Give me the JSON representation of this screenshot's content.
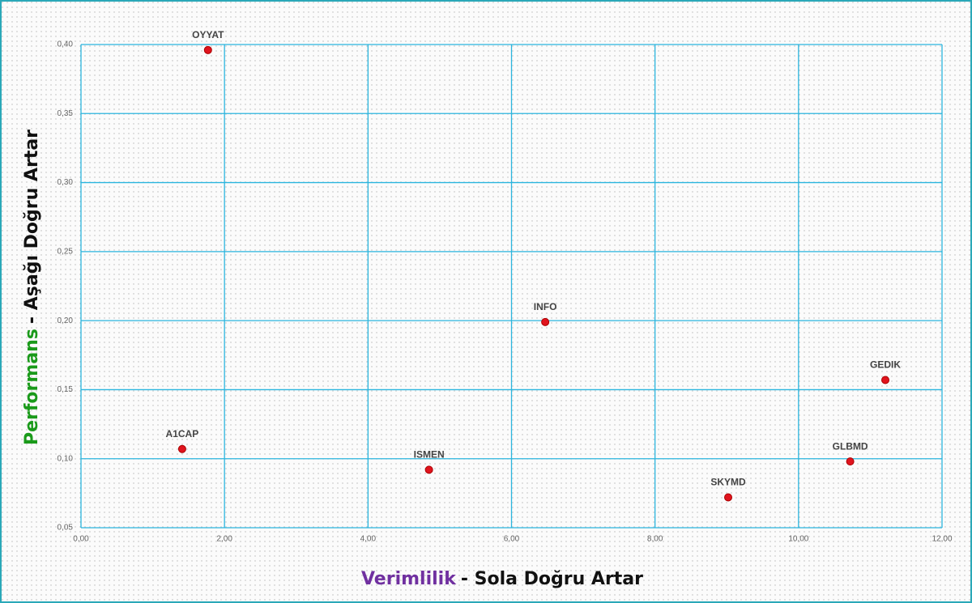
{
  "chart_data": {
    "type": "scatter",
    "labels": [
      "OYYAT",
      "INFO",
      "GEDIK",
      "A1CAP",
      "ISMEN",
      "GLBMD",
      "SKYMD"
    ],
    "x": [
      1.77,
      6.47,
      11.21,
      1.41,
      4.85,
      10.72,
      9.02
    ],
    "values": [
      0.396,
      0.199,
      0.157,
      0.107,
      0.092,
      0.098,
      0.072
    ],
    "color": "#e0141e",
    "x_label": {
      "highlight": "Verimlilik",
      "rest": "- Sola Doğru Artar"
    },
    "y_label": {
      "highlight": "Performans",
      "rest": "- Aşağı Doğru Artar"
    },
    "xlim": [
      0,
      12
    ],
    "xticks": [
      {
        "value": 0,
        "label": "0,00"
      },
      {
        "value": 2,
        "label": "2,00"
      },
      {
        "value": 4,
        "label": "4,00"
      },
      {
        "value": 6,
        "label": "6,00"
      },
      {
        "value": 8,
        "label": "8,00"
      },
      {
        "value": 10,
        "label": "10,00"
      },
      {
        "value": 12,
        "label": "12,00"
      }
    ],
    "ylim": [
      0.05,
      0.4
    ],
    "yticks": [
      {
        "value": 0.05,
        "label": "0,05"
      },
      {
        "value": 0.1,
        "label": "0,10"
      },
      {
        "value": 0.15,
        "label": "0,15"
      },
      {
        "value": 0.2,
        "label": "0,20"
      },
      {
        "value": 0.25,
        "label": "0,25"
      },
      {
        "value": 0.3,
        "label": "0,30"
      },
      {
        "value": 0.35,
        "label": "0,35"
      },
      {
        "value": 0.4,
        "label": "0,40"
      }
    ],
    "grid": true
  }
}
